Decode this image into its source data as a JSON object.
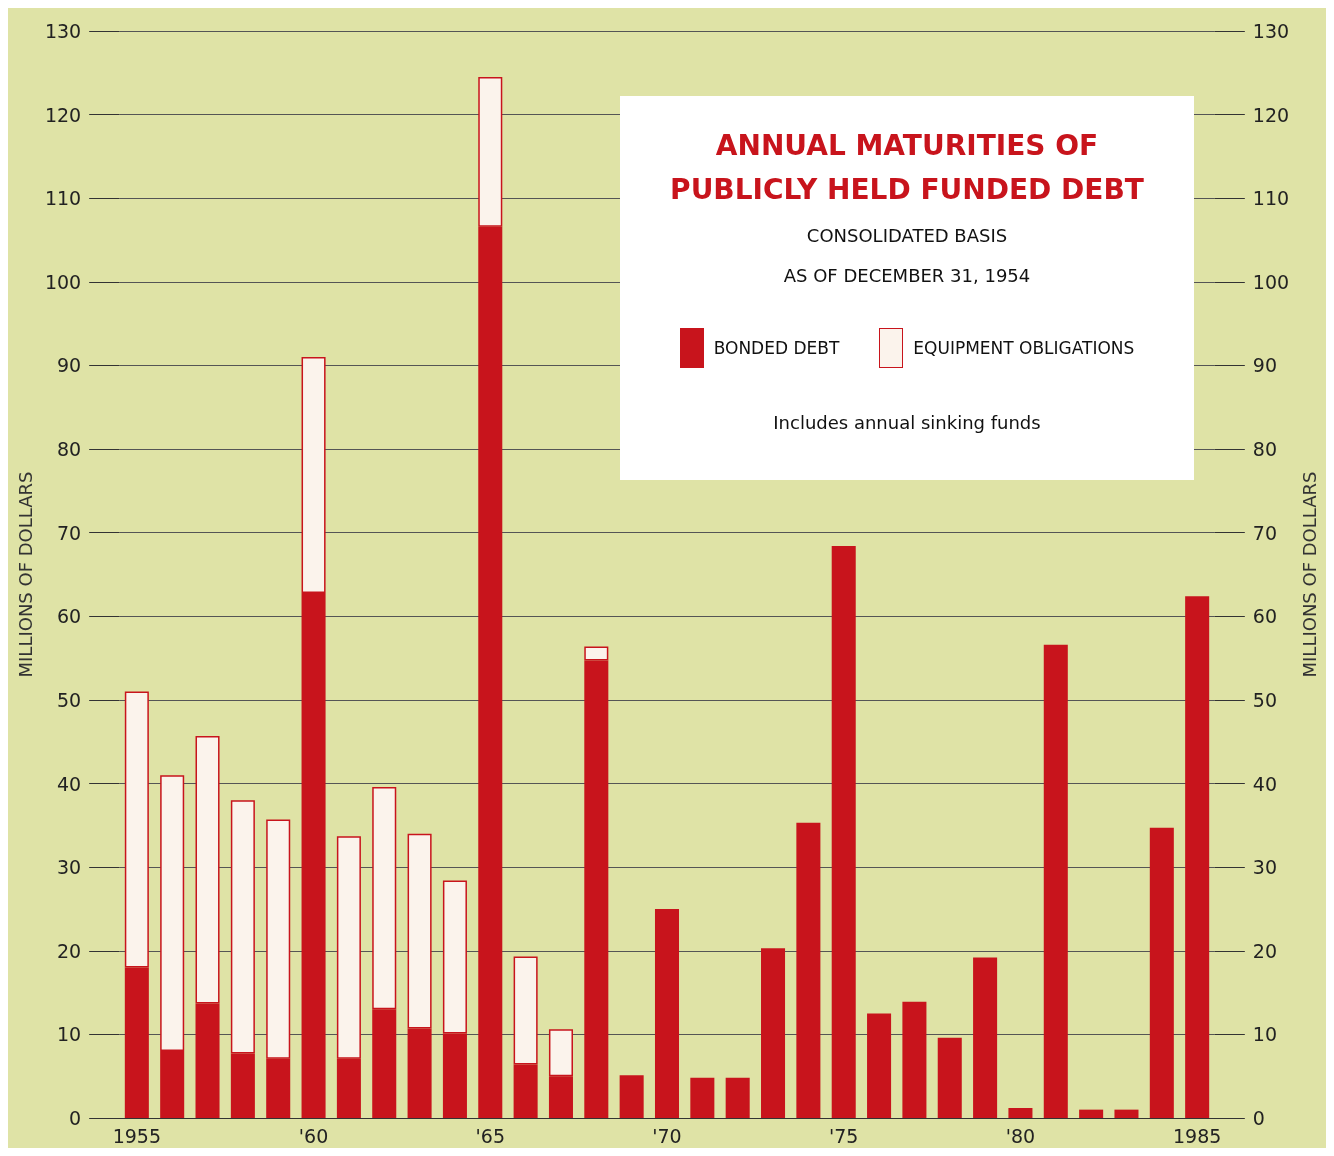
{
  "chart_data": {
    "type": "bar",
    "title": "ANNUAL MATURITIES OF\nPUBLICLY HELD FUNDED DEBT",
    "subtitle": "CONSOLIDATED BASIS\n\nAS OF DECEMBER 31, 1954",
    "ylabel": "MILLIONS OF DOLLARS",
    "y2label": "MILLIONS OF DOLLARS",
    "annotations": [
      "Includes annual sinking funds"
    ],
    "categories": [
      "1955",
      null,
      null,
      null,
      null,
      "'60",
      null,
      null,
      null,
      null,
      "'65",
      null,
      null,
      null,
      null,
      "'70",
      null,
      null,
      null,
      null,
      "'75",
      null,
      null,
      null,
      null,
      "'80",
      null,
      null,
      null,
      null,
      "1985"
    ],
    "stacked": true,
    "series": [
      {
        "name": "BONDED DEBT",
        "color": "#c8141c",
        "values": [
          18,
          8,
          13.7,
          7.7,
          7.1,
          62.8,
          7.1,
          13,
          10.7,
          10.1,
          106.6,
          6.4,
          5,
          54.7,
          5.1,
          25,
          4.8,
          4.8,
          20.3,
          35.3,
          68.4,
          12.5,
          13.9,
          9.6,
          19.2,
          1.2,
          56.6,
          1,
          1,
          34.7,
          62.4
        ]
      },
      {
        "name": "EQUIPMENT OBLIGATIONS",
        "color": "#fbf3ec",
        "values": [
          33,
          33,
          32,
          30.3,
          28.6,
          28.2,
          26.6,
          26.6,
          23.3,
          18.3,
          17.9,
          12.9,
          5.6,
          1.7,
          null,
          null,
          null,
          null,
          null,
          null,
          null,
          null,
          null,
          null,
          null,
          null,
          null,
          null,
          null,
          null,
          null
        ]
      }
    ],
    "ylim": [
      0,
      130
    ],
    "yticks": [
      0,
      10,
      20,
      30,
      40,
      50,
      60,
      70,
      80,
      90,
      100,
      110,
      120,
      130
    ],
    "y2lim": [
      0,
      130
    ],
    "y2ticks": [
      0,
      10,
      20,
      30,
      40,
      50,
      60,
      70,
      80,
      90,
      100,
      110,
      120,
      130
    ],
    "grid": "y",
    "legend": "top right"
  }
}
